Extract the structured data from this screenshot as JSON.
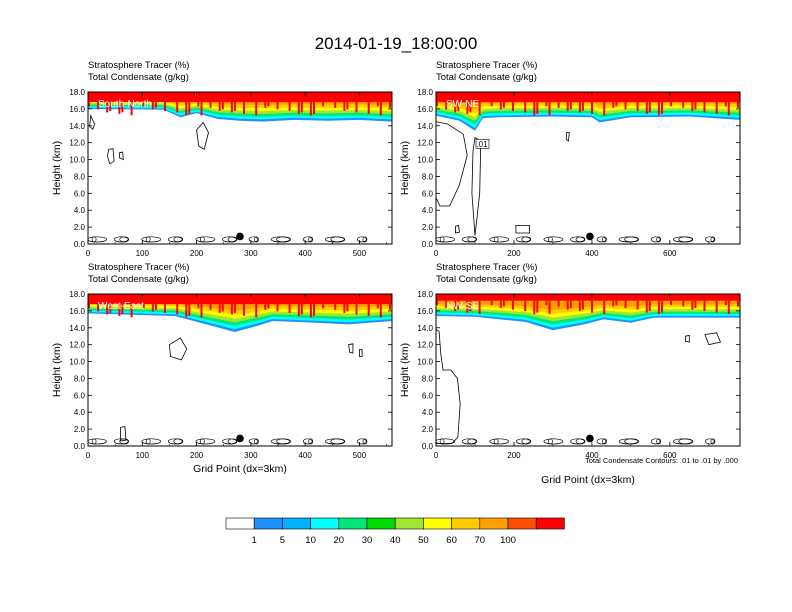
{
  "figure": {
    "title": "2014-01-19_18:00:00",
    "contour_note": "Total Condensate Contours: .01 to .01 by .000"
  },
  "palette": {
    "level_colors": [
      "#ffffff",
      "#1e90ff",
      "#00b2ff",
      "#00ffff",
      "#00e878",
      "#00dd00",
      "#a0e632",
      "#ffff00",
      "#ffcc00",
      "#ffa000",
      "#ff5000",
      "#ff0000"
    ],
    "tropo_colors": [
      "#1e90ff",
      "#00ffff",
      "#00e878",
      "#a0e632",
      "#ffff00",
      "#ffcc00",
      "#ffa000",
      "#ff5000"
    ],
    "contour_color": "#000000",
    "marker_color": "#000000"
  },
  "colorbar": {
    "labels": [
      "1",
      "5",
      "10",
      "20",
      "30",
      "40",
      "50",
      "60",
      "70",
      "100"
    ]
  },
  "chart_data": [
    {
      "type": "heatmap",
      "panel": "top-left",
      "line1": "Stratosphere Tracer   (%)",
      "line2": "Total Condensate   (g/kg)",
      "section_label": "South-North",
      "ylabel": "Height (km)",
      "xlabel": "",
      "xlim": [
        0,
        560
      ],
      "ylim": [
        0,
        18
      ],
      "xticks": [
        "0",
        "100",
        "200",
        "300",
        "400",
        "500"
      ],
      "yticks": [
        "0.0",
        "2.0",
        "4.0",
        "6.0",
        "8.0",
        "10.0",
        "12.0",
        "14.0",
        "16.0",
        "18.0"
      ],
      "marker_x": 280,
      "tropopause_base_km": [
        [
          0,
          16.0
        ],
        [
          140,
          15.9
        ],
        [
          170,
          15.0
        ],
        [
          200,
          15.5
        ],
        [
          240,
          14.8
        ],
        [
          280,
          14.6
        ],
        [
          320,
          14.5
        ],
        [
          380,
          14.7
        ],
        [
          440,
          14.6
        ],
        [
          500,
          14.7
        ],
        [
          560,
          14.5
        ]
      ],
      "contours": [
        [
          [
            5,
            15.2
          ],
          [
            12,
            14.2
          ],
          [
            9,
            13.6
          ],
          [
            3,
            13.9
          ]
        ],
        [
          [
            200,
            13.5
          ],
          [
            212,
            14.4
          ],
          [
            222,
            13.2
          ],
          [
            214,
            11.2
          ],
          [
            204,
            11.6
          ]
        ],
        [
          [
            38,
            11.2
          ],
          [
            46,
            11.3
          ],
          [
            48,
            9.8
          ],
          [
            40,
            9.5
          ],
          [
            36,
            10.4
          ]
        ],
        [
          [
            58,
            10.8
          ],
          [
            64,
            10.9
          ],
          [
            65,
            10.0
          ],
          [
            58,
            10.2
          ]
        ]
      ]
    },
    {
      "type": "heatmap",
      "panel": "top-right",
      "line1": "Stratosphere Tracer   (%)",
      "line2": "Total Condensate   (g/kg)",
      "section_label": "SW-NE",
      "ylabel": "Height (km)",
      "xlabel": "",
      "xlim": [
        0,
        780
      ],
      "ylim": [
        0,
        18
      ],
      "xticks": [
        "0",
        "200",
        "400",
        "600"
      ],
      "yticks": [
        "0.0",
        "2.0",
        "4.0",
        "6.0",
        "8.0",
        "10.0",
        "12.0",
        "14.0",
        "16.0",
        "18.0"
      ],
      "marker_x": 395,
      "contour_label": ".01",
      "tropopause_base_km": [
        [
          0,
          15.2
        ],
        [
          60,
          14.6
        ],
        [
          100,
          13.4
        ],
        [
          120,
          14.9
        ],
        [
          160,
          15.0
        ],
        [
          300,
          15.1
        ],
        [
          400,
          15.0
        ],
        [
          420,
          14.4
        ],
        [
          500,
          15.0
        ],
        [
          650,
          15.1
        ],
        [
          780,
          14.7
        ]
      ],
      "contours": [
        [
          [
            0,
            14.5
          ],
          [
            30,
            14.2
          ],
          [
            70,
            13.0
          ],
          [
            80,
            10.5
          ],
          [
            60,
            7.0
          ],
          [
            35,
            4.5
          ],
          [
            10,
            4.5
          ],
          [
            0,
            5.5
          ]
        ],
        [
          [
            100,
            12.6
          ],
          [
            115,
            12.2
          ],
          [
            112,
            6.0
          ],
          [
            100,
            1.0
          ],
          [
            92,
            6.0
          ],
          [
            95,
            11.0
          ]
        ],
        [
          [
            335,
            13.2
          ],
          [
            342,
            13.2
          ],
          [
            340,
            12.2
          ],
          [
            334,
            12.4
          ]
        ],
        [
          [
            205,
            2.2
          ],
          [
            240,
            2.2
          ],
          [
            240,
            1.3
          ],
          [
            205,
            1.3
          ]
        ],
        [
          [
            50,
            2.1
          ],
          [
            58,
            2.2
          ],
          [
            60,
            1.4
          ],
          [
            50,
            1.3
          ]
        ]
      ]
    },
    {
      "type": "heatmap",
      "panel": "bottom-left",
      "line1": "Stratosphere Tracer   (%)",
      "line2": "Total Condensate   (g/kg)",
      "section_label": "West-East",
      "ylabel": "Height (km)",
      "xlabel": "Grid Point (dx=3km)",
      "xlim": [
        0,
        560
      ],
      "ylim": [
        0,
        18
      ],
      "xticks": [
        "0",
        "100",
        "200",
        "300",
        "400",
        "500"
      ],
      "yticks": [
        "0.0",
        "2.0",
        "4.0",
        "6.0",
        "8.0",
        "10.0",
        "12.0",
        "14.0",
        "16.0",
        "18.0"
      ],
      "marker_x": 280,
      "tropopause_base_km": [
        [
          0,
          15.7
        ],
        [
          160,
          15.4
        ],
        [
          230,
          14.2
        ],
        [
          270,
          13.5
        ],
        [
          310,
          14.2
        ],
        [
          340,
          14.8
        ],
        [
          420,
          14.6
        ],
        [
          480,
          14.4
        ],
        [
          560,
          14.8
        ]
      ],
      "contours": [
        [
          [
            150,
            12.0
          ],
          [
            170,
            12.8
          ],
          [
            182,
            11.5
          ],
          [
            172,
            10.2
          ],
          [
            152,
            10.6
          ]
        ],
        [
          [
            480,
            12.0
          ],
          [
            488,
            12.1
          ],
          [
            488,
            11.0
          ],
          [
            482,
            11.1
          ]
        ],
        [
          [
            500,
            11.4
          ],
          [
            505,
            11.4
          ],
          [
            505,
            10.6
          ],
          [
            500,
            10.6
          ]
        ],
        [
          [
            60,
            2.2
          ],
          [
            68,
            2.3
          ],
          [
            70,
            0.7
          ],
          [
            60,
            0.6
          ]
        ]
      ]
    },
    {
      "type": "heatmap",
      "panel": "bottom-right",
      "line1": "Stratosphere Tracer   (%)",
      "line2": "Total Condensate   (g/kg)",
      "section_label": "NW-SE",
      "ylabel": "Height (km)",
      "xlabel": "Grid Point (dx=3km)",
      "xlim": [
        0,
        780
      ],
      "ylim": [
        0,
        18
      ],
      "xticks": [
        "0",
        "200",
        "400",
        "600"
      ],
      "yticks": [
        "0.0",
        "2.0",
        "4.0",
        "6.0",
        "8.0",
        "10.0",
        "12.0",
        "14.0",
        "16.0",
        "18.0"
      ],
      "marker_x": 395,
      "tropopause_base_km": [
        [
          0,
          15.4
        ],
        [
          100,
          15.3
        ],
        [
          230,
          14.7
        ],
        [
          300,
          13.7
        ],
        [
          380,
          14.4
        ],
        [
          430,
          15.0
        ],
        [
          500,
          14.6
        ],
        [
          560,
          15.2
        ],
        [
          780,
          15.2
        ]
      ],
      "contours": [
        [
          [
            0,
            13.8
          ],
          [
            8,
            13.6
          ],
          [
            12,
            11.0
          ],
          [
            18,
            9.0
          ],
          [
            38,
            9.0
          ],
          [
            55,
            8.0
          ],
          [
            62,
            5.0
          ],
          [
            56,
            1.0
          ],
          [
            40,
            0.3
          ],
          [
            0,
            0.3
          ]
        ],
        [
          [
            690,
            13.2
          ],
          [
            720,
            13.4
          ],
          [
            730,
            12.3
          ],
          [
            700,
            12.0
          ]
        ],
        [
          [
            640,
            13.0
          ],
          [
            650,
            13.1
          ],
          [
            650,
            12.3
          ],
          [
            640,
            12.4
          ]
        ]
      ]
    }
  ]
}
